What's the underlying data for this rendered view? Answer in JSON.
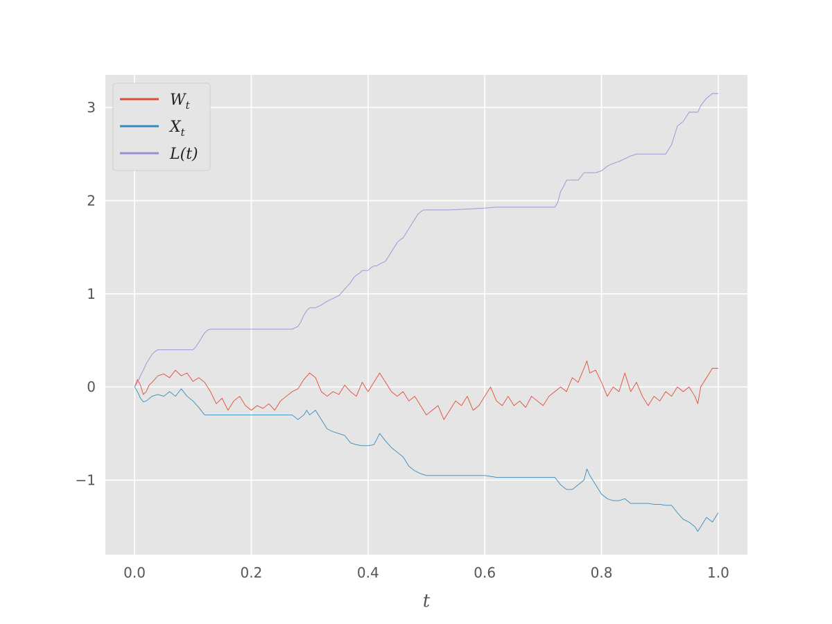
{
  "chart_data": {
    "type": "line",
    "xlabel": "t",
    "ylabel": "",
    "xlim": [
      -0.05,
      1.05
    ],
    "ylim": [
      -1.8,
      3.35
    ],
    "xticks": [
      0.0,
      0.2,
      0.4,
      0.6,
      0.8,
      1.0
    ],
    "xtick_labels": [
      "0.0",
      "0.2",
      "0.4",
      "0.6",
      "0.8",
      "1.0"
    ],
    "yticks": [
      -1,
      0,
      1,
      2,
      3
    ],
    "ytick_labels": [
      "−1",
      "0",
      "1",
      "2",
      "3"
    ],
    "grid": true,
    "legend_position": "top-left",
    "legend_entries": [
      {
        "main": "W",
        "sub": "t",
        "color": "#E24A33"
      },
      {
        "main": "X",
        "sub": "t",
        "color": "#348ABD"
      },
      {
        "main": "L(t)",
        "sub": "",
        "color": "#988ED5"
      }
    ],
    "series": [
      {
        "name": "W_t",
        "color": "#E24A33",
        "x": [
          0,
          0.005,
          0.01,
          0.015,
          0.02,
          0.025,
          0.03,
          0.04,
          0.05,
          0.06,
          0.07,
          0.08,
          0.09,
          0.1,
          0.11,
          0.12,
          0.13,
          0.14,
          0.15,
          0.16,
          0.17,
          0.18,
          0.19,
          0.2,
          0.21,
          0.22,
          0.23,
          0.24,
          0.25,
          0.26,
          0.27,
          0.28,
          0.29,
          0.3,
          0.31,
          0.32,
          0.33,
          0.34,
          0.35,
          0.36,
          0.37,
          0.38,
          0.39,
          0.4,
          0.41,
          0.42,
          0.43,
          0.44,
          0.45,
          0.46,
          0.47,
          0.48,
          0.49,
          0.5,
          0.51,
          0.52,
          0.53,
          0.54,
          0.55,
          0.56,
          0.57,
          0.58,
          0.59,
          0.6,
          0.61,
          0.62,
          0.63,
          0.64,
          0.65,
          0.66,
          0.67,
          0.68,
          0.69,
          0.7,
          0.71,
          0.72,
          0.73,
          0.74,
          0.75,
          0.76,
          0.77,
          0.775,
          0.78,
          0.79,
          0.8,
          0.81,
          0.82,
          0.83,
          0.84,
          0.85,
          0.86,
          0.87,
          0.88,
          0.89,
          0.9,
          0.91,
          0.92,
          0.93,
          0.94,
          0.95,
          0.96,
          0.965,
          0.97,
          0.98,
          0.99,
          1.0
        ],
        "y": [
          0,
          0.08,
          0.02,
          -0.08,
          -0.05,
          0.02,
          0.05,
          0.12,
          0.14,
          0.1,
          0.18,
          0.12,
          0.15,
          0.06,
          0.1,
          0.05,
          -0.05,
          -0.18,
          -0.12,
          -0.25,
          -0.15,
          -0.1,
          -0.2,
          -0.25,
          -0.2,
          -0.23,
          -0.18,
          -0.25,
          -0.15,
          -0.1,
          -0.05,
          -0.02,
          0.08,
          0.15,
          0.1,
          -0.05,
          -0.1,
          -0.05,
          -0.08,
          0.02,
          -0.05,
          -0.1,
          0.05,
          -0.05,
          0.05,
          0.15,
          0.05,
          -0.05,
          -0.1,
          -0.05,
          -0.15,
          -0.1,
          -0.2,
          -0.3,
          -0.25,
          -0.2,
          -0.35,
          -0.25,
          -0.15,
          -0.2,
          -0.1,
          -0.25,
          -0.2,
          -0.1,
          0.0,
          -0.15,
          -0.2,
          -0.1,
          -0.2,
          -0.15,
          -0.22,
          -0.1,
          -0.15,
          -0.2,
          -0.1,
          -0.05,
          0.0,
          -0.05,
          0.1,
          0.05,
          0.2,
          0.28,
          0.15,
          0.18,
          0.05,
          -0.1,
          0.0,
          -0.05,
          0.15,
          -0.05,
          0.05,
          -0.1,
          -0.2,
          -0.1,
          -0.15,
          -0.05,
          -0.1,
          0.0,
          -0.05,
          0.0,
          -0.1,
          -0.18,
          0.0,
          0.1,
          0.2,
          0.2
        ]
      },
      {
        "name": "X_t",
        "color": "#348ABD",
        "x": [
          0,
          0.005,
          0.01,
          0.015,
          0.02,
          0.03,
          0.04,
          0.05,
          0.06,
          0.07,
          0.08,
          0.09,
          0.1,
          0.11,
          0.12,
          0.13,
          0.14,
          0.15,
          0.16,
          0.17,
          0.18,
          0.19,
          0.2,
          0.21,
          0.22,
          0.23,
          0.24,
          0.25,
          0.26,
          0.27,
          0.28,
          0.29,
          0.295,
          0.3,
          0.31,
          0.32,
          0.33,
          0.34,
          0.35,
          0.36,
          0.37,
          0.38,
          0.39,
          0.4,
          0.41,
          0.42,
          0.43,
          0.44,
          0.45,
          0.46,
          0.47,
          0.48,
          0.49,
          0.5,
          0.52,
          0.54,
          0.56,
          0.58,
          0.6,
          0.62,
          0.64,
          0.66,
          0.68,
          0.7,
          0.72,
          0.73,
          0.74,
          0.75,
          0.76,
          0.77,
          0.775,
          0.78,
          0.79,
          0.8,
          0.81,
          0.82,
          0.83,
          0.84,
          0.85,
          0.86,
          0.87,
          0.88,
          0.89,
          0.9,
          0.91,
          0.92,
          0.93,
          0.94,
          0.95,
          0.96,
          0.965,
          0.97,
          0.98,
          0.99,
          1.0
        ],
        "y": [
          0,
          -0.05,
          -0.12,
          -0.16,
          -0.15,
          -0.1,
          -0.08,
          -0.1,
          -0.05,
          -0.1,
          -0.02,
          -0.1,
          -0.15,
          -0.22,
          -0.3,
          -0.3,
          -0.3,
          -0.3,
          -0.3,
          -0.3,
          -0.3,
          -0.3,
          -0.3,
          -0.3,
          -0.3,
          -0.3,
          -0.3,
          -0.3,
          -0.3,
          -0.3,
          -0.35,
          -0.3,
          -0.25,
          -0.3,
          -0.25,
          -0.35,
          -0.45,
          -0.48,
          -0.5,
          -0.52,
          -0.6,
          -0.62,
          -0.63,
          -0.63,
          -0.62,
          -0.5,
          -0.58,
          -0.65,
          -0.7,
          -0.75,
          -0.85,
          -0.9,
          -0.93,
          -0.95,
          -0.95,
          -0.95,
          -0.95,
          -0.95,
          -0.95,
          -0.97,
          -0.97,
          -0.97,
          -0.97,
          -0.97,
          -0.97,
          -1.05,
          -1.1,
          -1.1,
          -1.05,
          -1.0,
          -0.88,
          -0.95,
          -1.05,
          -1.15,
          -1.2,
          -1.22,
          -1.22,
          -1.2,
          -1.25,
          -1.25,
          -1.25,
          -1.25,
          -1.26,
          -1.26,
          -1.27,
          -1.27,
          -1.35,
          -1.42,
          -1.45,
          -1.5,
          -1.55,
          -1.5,
          -1.4,
          -1.45,
          -1.35
        ]
      },
      {
        "name": "L(t)",
        "color": "#988ED5",
        "x": [
          0,
          0.005,
          0.01,
          0.015,
          0.02,
          0.025,
          0.03,
          0.035,
          0.04,
          0.05,
          0.06,
          0.07,
          0.08,
          0.09,
          0.1,
          0.105,
          0.11,
          0.115,
          0.12,
          0.125,
          0.13,
          0.2,
          0.27,
          0.28,
          0.285,
          0.29,
          0.295,
          0.3,
          0.31,
          0.32,
          0.33,
          0.34,
          0.35,
          0.36,
          0.37,
          0.375,
          0.38,
          0.385,
          0.39,
          0.395,
          0.4,
          0.405,
          0.41,
          0.415,
          0.42,
          0.43,
          0.44,
          0.445,
          0.45,
          0.455,
          0.46,
          0.465,
          0.47,
          0.475,
          0.48,
          0.485,
          0.49,
          0.495,
          0.5,
          0.51,
          0.52,
          0.53,
          0.54,
          0.6,
          0.62,
          0.68,
          0.72,
          0.725,
          0.73,
          0.735,
          0.74,
          0.75,
          0.76,
          0.77,
          0.775,
          0.78,
          0.79,
          0.8,
          0.81,
          0.82,
          0.83,
          0.84,
          0.85,
          0.86,
          0.87,
          0.88,
          0.89,
          0.9,
          0.91,
          0.915,
          0.92,
          0.925,
          0.93,
          0.94,
          0.95,
          0.96,
          0.965,
          0.97,
          0.98,
          0.99,
          1.0
        ],
        "y": [
          0,
          0.05,
          0.12,
          0.18,
          0.25,
          0.3,
          0.35,
          0.38,
          0.4,
          0.4,
          0.4,
          0.4,
          0.4,
          0.4,
          0.4,
          0.43,
          0.48,
          0.53,
          0.58,
          0.61,
          0.62,
          0.62,
          0.62,
          0.65,
          0.7,
          0.77,
          0.82,
          0.85,
          0.85,
          0.88,
          0.92,
          0.95,
          0.98,
          1.05,
          1.12,
          1.17,
          1.2,
          1.22,
          1.25,
          1.25,
          1.25,
          1.28,
          1.3,
          1.3,
          1.32,
          1.35,
          1.45,
          1.5,
          1.55,
          1.58,
          1.6,
          1.65,
          1.7,
          1.75,
          1.8,
          1.85,
          1.88,
          1.9,
          1.9,
          1.9,
          1.9,
          1.9,
          1.9,
          1.92,
          1.93,
          1.93,
          1.93,
          1.98,
          2.1,
          2.15,
          2.22,
          2.22,
          2.22,
          2.3,
          2.3,
          2.3,
          2.3,
          2.32,
          2.37,
          2.4,
          2.42,
          2.45,
          2.48,
          2.5,
          2.5,
          2.5,
          2.5,
          2.5,
          2.5,
          2.55,
          2.6,
          2.7,
          2.8,
          2.85,
          2.95,
          2.95,
          2.95,
          3.02,
          3.1,
          3.15,
          3.15
        ]
      }
    ]
  }
}
